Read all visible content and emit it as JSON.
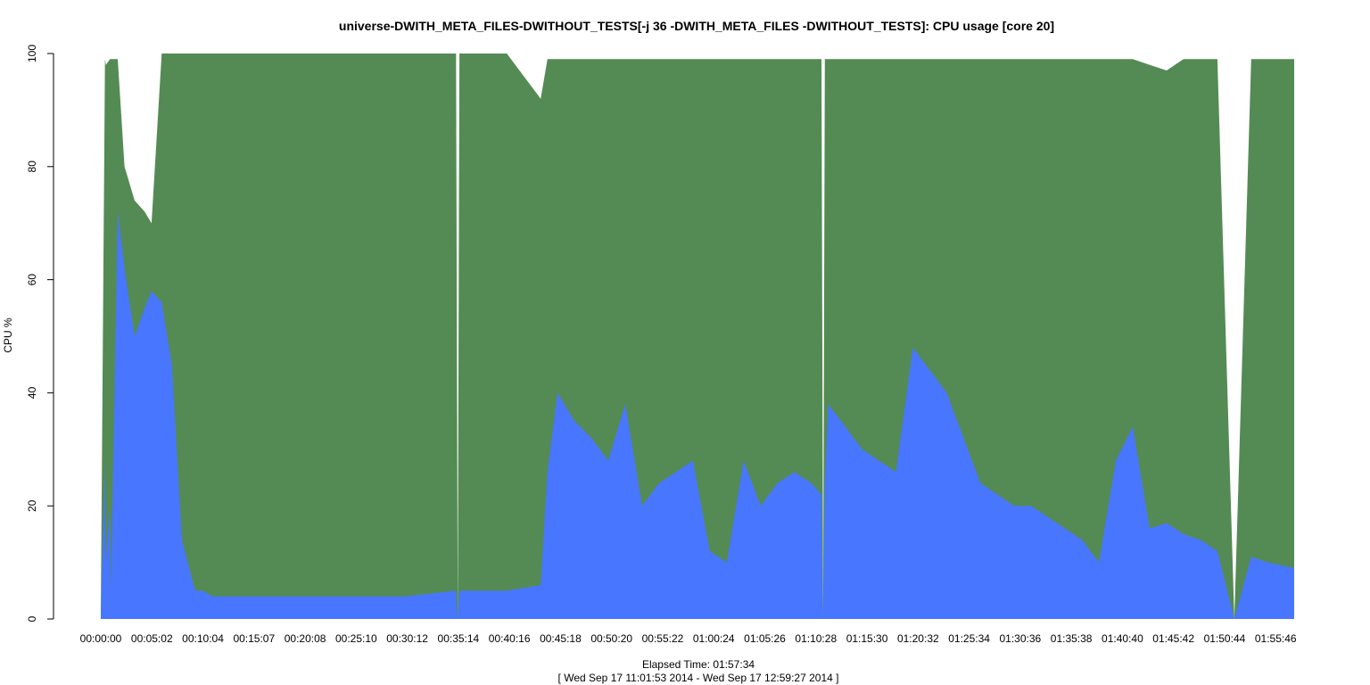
{
  "chart_data": {
    "type": "area",
    "title": "universe-DWITH_META_FILES-DWITHOUT_TESTS[-j 36 -DWITH_META_FILES -DWITHOUT_TESTS]: CPU usage [core 20]",
    "xlabel": "Elapsed Time: 01:57:34",
    "time_range": "[ Wed Sep 17 11:01:53 2014 - Wed Sep 17 12:59:27 2014 ]",
    "ylabel": "CPU %",
    "ylim": [
      0,
      100
    ],
    "yticks": [
      "0",
      "20",
      "40",
      "60",
      "80",
      "100"
    ],
    "xticks": [
      "00:00:00",
      "00:05:02",
      "00:10:04",
      "00:15:07",
      "00:20:08",
      "00:25:10",
      "00:30:12",
      "00:35:14",
      "00:40:16",
      "00:45:18",
      "00:50:20",
      "00:55:22",
      "01:00:24",
      "01:05:26",
      "01:10:28",
      "01:15:30",
      "01:20:32",
      "01:25:34",
      "01:30:36",
      "01:35:38",
      "01:40:40",
      "01:45:42",
      "01:50:44",
      "01:55:46"
    ],
    "x_unit_seconds_total": 7054,
    "x_seconds": [
      0,
      25,
      30,
      55,
      60,
      100,
      140,
      200,
      260,
      300,
      360,
      420,
      480,
      540,
      560,
      600,
      660,
      900,
      1200,
      1500,
      1800,
      2100,
      2110,
      2120,
      2400,
      2600,
      2640,
      2700,
      2800,
      2900,
      3000,
      3100,
      3200,
      3300,
      3400,
      3500,
      3600,
      3700,
      3800,
      3900,
      4000,
      4100,
      4200,
      4260,
      4270,
      4280,
      4300,
      4400,
      4500,
      4600,
      4700,
      4800,
      4900,
      5000,
      5100,
      5200,
      5300,
      5400,
      5500,
      5600,
      5700,
      5800,
      5900,
      6000,
      6100,
      6200,
      6300,
      6400,
      6500,
      6600,
      6700,
      6800,
      6900,
      7054
    ],
    "series": [
      {
        "color": "#4876ff",
        "values": [
          1,
          28,
          10,
          20,
          5,
          72,
          62,
          50,
          55,
          58,
          56,
          45,
          14,
          7,
          5,
          5,
          4,
          4,
          4,
          4,
          4,
          5,
          0,
          5,
          5,
          6,
          26,
          40,
          35,
          32,
          28,
          38,
          20,
          24,
          26,
          28,
          12,
          10,
          28,
          20,
          24,
          26,
          24,
          22,
          0,
          24,
          38,
          34,
          30,
          28,
          26,
          48,
          44,
          40,
          32,
          24,
          22,
          20,
          20,
          18,
          16,
          14,
          10,
          28,
          34,
          16,
          17,
          15,
          14,
          12,
          0,
          11,
          10,
          9
        ]
      },
      {
        "color": "#548b54",
        "values": [
          1,
          99,
          98,
          99,
          99,
          99,
          80,
          74,
          72,
          70,
          100,
          100,
          100,
          100,
          100,
          100,
          100,
          100,
          100,
          100,
          100,
          100,
          0,
          100,
          100,
          92,
          99,
          99,
          99,
          99,
          99,
          99,
          99,
          99,
          99,
          99,
          99,
          99,
          99,
          99,
          99,
          99,
          99,
          99,
          0,
          99,
          99,
          99,
          99,
          99,
          99,
          99,
          99,
          99,
          99,
          99,
          99,
          99,
          99,
          99,
          99,
          99,
          99,
          99,
          99,
          98,
          97,
          99,
          99,
          99,
          0,
          99,
          99,
          99
        ]
      }
    ]
  }
}
